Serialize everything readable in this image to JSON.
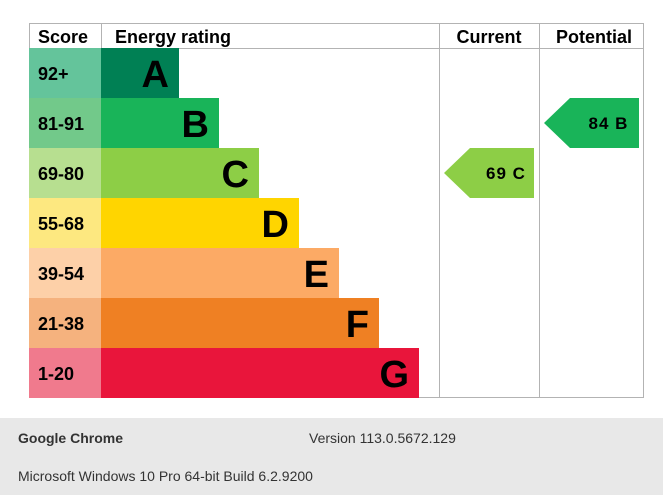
{
  "chart_data": {
    "type": "table",
    "headers": {
      "score": "Score",
      "rating": "Energy rating",
      "current": "Current",
      "potential": "Potential"
    },
    "bands": [
      {
        "letter": "A",
        "score": "92+",
        "color": "#008054",
        "score_bg": "#64c49b",
        "relative_length": 1
      },
      {
        "letter": "B",
        "score": "81-91",
        "color": "#19b459",
        "score_bg": "#72c98a",
        "relative_length": 2
      },
      {
        "letter": "C",
        "score": "69-80",
        "color": "#8dce46",
        "score_bg": "#b7df90",
        "relative_length": 3
      },
      {
        "letter": "D",
        "score": "55-68",
        "color": "#ffd500",
        "score_bg": "#fde880",
        "relative_length": 4
      },
      {
        "letter": "E",
        "score": "39-54",
        "color": "#fcaa65",
        "score_bg": "#fdd0a8",
        "relative_length": 5
      },
      {
        "letter": "F",
        "score": "21-38",
        "color": "#ef8023",
        "score_bg": "#f5b27e",
        "relative_length": 6
      },
      {
        "letter": "G",
        "score": "1-20",
        "color": "#e9153b",
        "score_bg": "#f07a8d",
        "relative_length": 7
      }
    ],
    "current": {
      "value": 69,
      "band": "C",
      "label": "69 C",
      "color": "#8dce46"
    },
    "potential": {
      "value": 84,
      "band": "B",
      "label": "84 B",
      "color": "#19b459"
    }
  },
  "footer": {
    "browser_name": "Google Chrome",
    "browser_version": "Version 113.0.5672.129",
    "os_info": "Microsoft Windows 10 Pro 64-bit Build 6.2.9200"
  }
}
